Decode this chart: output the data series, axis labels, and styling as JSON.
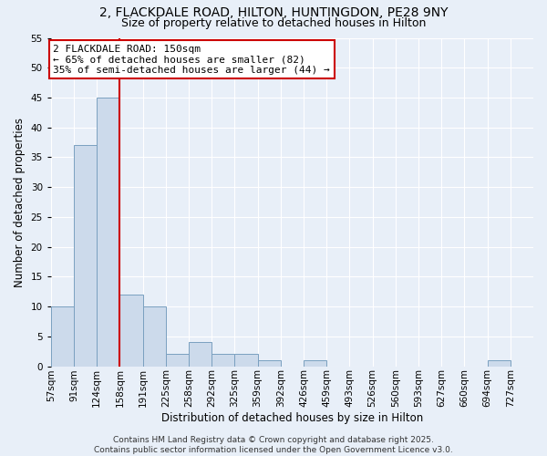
{
  "title1": "2, FLACKDALE ROAD, HILTON, HUNTINGDON, PE28 9NY",
  "title2": "Size of property relative to detached houses in Hilton",
  "xlabel": "Distribution of detached houses by size in Hilton",
  "ylabel": "Number of detached properties",
  "bar_color": "#ccdaeb",
  "bar_edgecolor": "#7aa0c0",
  "bins": [
    "57sqm",
    "91sqm",
    "124sqm",
    "158sqm",
    "191sqm",
    "225sqm",
    "258sqm",
    "292sqm",
    "325sqm",
    "359sqm",
    "392sqm",
    "426sqm",
    "459sqm",
    "493sqm",
    "526sqm",
    "560sqm",
    "593sqm",
    "627sqm",
    "660sqm",
    "694sqm",
    "727sqm"
  ],
  "values": [
    10,
    37,
    45,
    12,
    10,
    2,
    4,
    2,
    2,
    1,
    0,
    1,
    0,
    0,
    0,
    0,
    0,
    0,
    0,
    1,
    0
  ],
  "vline_color": "#cc0000",
  "annotation_text": "2 FLACKDALE ROAD: 150sqm\n← 65% of detached houses are smaller (82)\n35% of semi-detached houses are larger (44) →",
  "annotation_box_color": "#cc0000",
  "ylim": [
    0,
    55
  ],
  "yticks": [
    0,
    5,
    10,
    15,
    20,
    25,
    30,
    35,
    40,
    45,
    50,
    55
  ],
  "footer1": "Contains HM Land Registry data © Crown copyright and database right 2025.",
  "footer2": "Contains public sector information licensed under the Open Government Licence v3.0.",
  "background_color": "#e8eff8",
  "grid_color": "#ffffff",
  "title_fontsize": 10,
  "subtitle_fontsize": 9,
  "axis_label_fontsize": 8.5,
  "tick_fontsize": 7.5,
  "annotation_fontsize": 8,
  "footer_fontsize": 6.5
}
